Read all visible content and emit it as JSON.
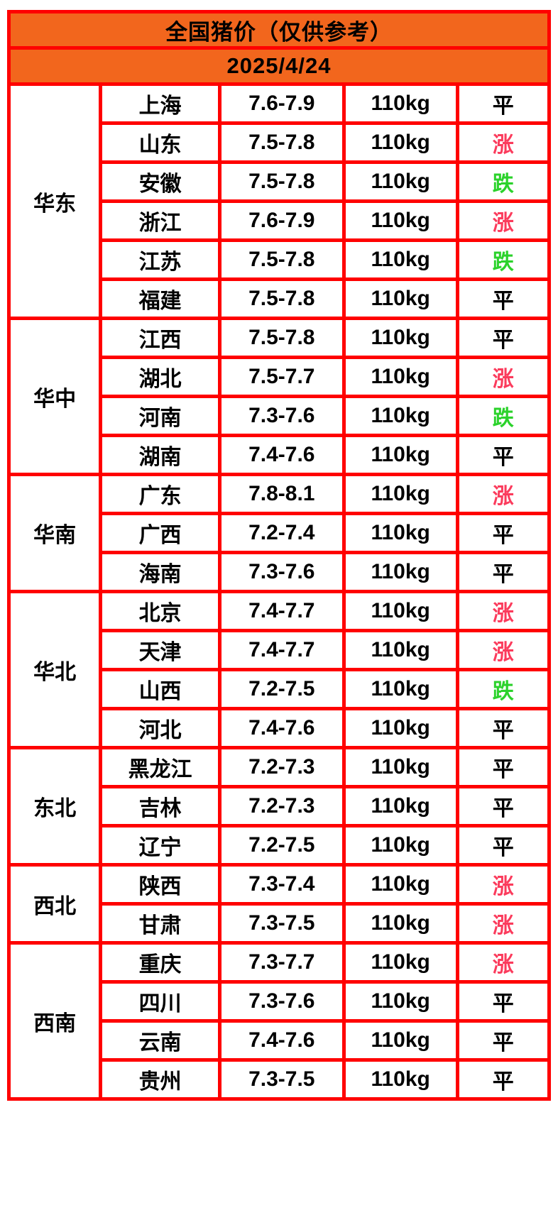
{
  "title": "全国猪价（仅供参考）",
  "date": "2025/4/24",
  "colors": {
    "header_bg": "#f2661d",
    "border": "#ff0000",
    "up": "#fb3b5c",
    "down": "#2bd22b",
    "flat": "#000000"
  },
  "table": {
    "regions": [
      {
        "name": "华东",
        "rows": [
          {
            "province": "上海",
            "price": "7.6-7.9",
            "weight": "110kg",
            "status": "平",
            "trend": "flat"
          },
          {
            "province": "山东",
            "price": "7.5-7.8",
            "weight": "110kg",
            "status": "涨",
            "trend": "up"
          },
          {
            "province": "安徽",
            "price": "7.5-7.8",
            "weight": "110kg",
            "status": "跌",
            "trend": "down"
          },
          {
            "province": "浙江",
            "price": "7.6-7.9",
            "weight": "110kg",
            "status": "涨",
            "trend": "up"
          },
          {
            "province": "江苏",
            "price": "7.5-7.8",
            "weight": "110kg",
            "status": "跌",
            "trend": "down"
          },
          {
            "province": "福建",
            "price": "7.5-7.8",
            "weight": "110kg",
            "status": "平",
            "trend": "flat"
          }
        ]
      },
      {
        "name": "华中",
        "rows": [
          {
            "province": "江西",
            "price": "7.5-7.8",
            "weight": "110kg",
            "status": "平",
            "trend": "flat"
          },
          {
            "province": "湖北",
            "price": "7.5-7.7",
            "weight": "110kg",
            "status": "涨",
            "trend": "up"
          },
          {
            "province": "河南",
            "price": "7.3-7.6",
            "weight": "110kg",
            "status": "跌",
            "trend": "down"
          },
          {
            "province": "湖南",
            "price": "7.4-7.6",
            "weight": "110kg",
            "status": "平",
            "trend": "flat"
          }
        ]
      },
      {
        "name": "华南",
        "rows": [
          {
            "province": "广东",
            "price": "7.8-8.1",
            "weight": "110kg",
            "status": "涨",
            "trend": "up"
          },
          {
            "province": "广西",
            "price": "7.2-7.4",
            "weight": "110kg",
            "status": "平",
            "trend": "flat"
          },
          {
            "province": "海南",
            "price": "7.3-7.6",
            "weight": "110kg",
            "status": "平",
            "trend": "flat"
          }
        ]
      },
      {
        "name": "华北",
        "rows": [
          {
            "province": "北京",
            "price": "7.4-7.7",
            "weight": "110kg",
            "status": "涨",
            "trend": "up"
          },
          {
            "province": "天津",
            "price": "7.4-7.7",
            "weight": "110kg",
            "status": "涨",
            "trend": "up"
          },
          {
            "province": "山西",
            "price": "7.2-7.5",
            "weight": "110kg",
            "status": "跌",
            "trend": "down"
          },
          {
            "province": "河北",
            "price": "7.4-7.6",
            "weight": "110kg",
            "status": "平",
            "trend": "flat"
          }
        ]
      },
      {
        "name": "东北",
        "rows": [
          {
            "province": "黑龙江",
            "price": "7.2-7.3",
            "weight": "110kg",
            "status": "平",
            "trend": "flat"
          },
          {
            "province": "吉林",
            "price": "7.2-7.3",
            "weight": "110kg",
            "status": "平",
            "trend": "flat"
          },
          {
            "province": "辽宁",
            "price": "7.2-7.5",
            "weight": "110kg",
            "status": "平",
            "trend": "flat"
          }
        ]
      },
      {
        "name": "西北",
        "rows": [
          {
            "province": "陕西",
            "price": "7.3-7.4",
            "weight": "110kg",
            "status": "涨",
            "trend": "up"
          },
          {
            "province": "甘肃",
            "price": "7.3-7.5",
            "weight": "110kg",
            "status": "涨",
            "trend": "up"
          }
        ]
      },
      {
        "name": "西南",
        "rows": [
          {
            "province": "重庆",
            "price": "7.3-7.7",
            "weight": "110kg",
            "status": "涨",
            "trend": "up"
          },
          {
            "province": "四川",
            "price": "7.3-7.6",
            "weight": "110kg",
            "status": "平",
            "trend": "flat"
          },
          {
            "province": "云南",
            "price": "7.4-7.6",
            "weight": "110kg",
            "status": "平",
            "trend": "flat"
          },
          {
            "province": "贵州",
            "price": "7.3-7.5",
            "weight": "110kg",
            "status": "平",
            "trend": "flat"
          }
        ]
      }
    ]
  }
}
